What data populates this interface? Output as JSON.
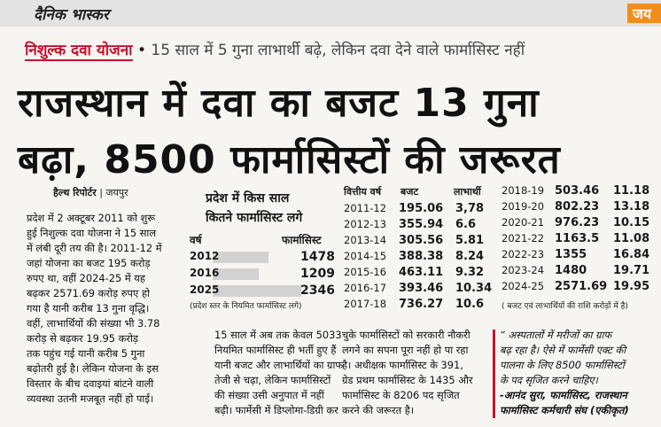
{
  "masthead": {
    "logo": "दैनिक भास्कर",
    "edition": "जय"
  },
  "kicker": {
    "label": "निशुल्क दवा योजना",
    "text": "15 साल में 5 गुना लाभार्थी बढ़े, लेकिन दवा देने वाले फार्मासिस्ट नहीं"
  },
  "headline": [
    "राजस्थान में दवा का बजट 13 गुना",
    "बढ़ा, 8500 फार्मासिस्टों की जरूरत"
  ],
  "byline": {
    "reporter": "हैल्थ रिपोर्टर",
    "place": "जयपुर"
  },
  "pharmacist_box": {
    "title": [
      "प्रदेश में किस साल",
      "कितने फार्मासिस्ट लगे"
    ],
    "header": [
      "वर्ष",
      "फार्मासिस्ट"
    ],
    "rows": [
      [
        "2012",
        1478
      ],
      [
        "2016",
        1209
      ],
      [
        "2025",
        2346
      ]
    ],
    "note": "(प्रदेश स्तर के नियमित फार्मासिस्ट लगे)"
  },
  "budget_table": {
    "header": [
      "वित्तीय वर्ष",
      "बजट",
      "लाभार्थी"
    ],
    "rows": [
      [
        "2011-12",
        "195.06",
        "3,78"
      ],
      [
        "2012-13",
        "355.94",
        "6.6"
      ],
      [
        "2013-14",
        "305.56",
        "5.81"
      ],
      [
        "2014-15",
        "388.38",
        "8.24"
      ],
      [
        "2015-16",
        "463.11",
        "9.32"
      ],
      [
        "2016-17",
        "393.46",
        "10.34"
      ],
      [
        "2017-18",
        "736.27",
        "10.6"
      ],
      [
        "2018-19",
        "503.46",
        "11.18"
      ],
      [
        "2019-20",
        "802.23",
        "13.18"
      ],
      [
        "2020-21",
        "976.23",
        "10.15"
      ],
      [
        "2021-22",
        "1163.5",
        "11.08"
      ],
      [
        "2022-23",
        "1355",
        "16.84"
      ],
      [
        "2023-24",
        "1480",
        "19.71"
      ],
      [
        "2024-25",
        "2571.69",
        "19.95"
      ]
    ],
    "note": "( बजट एवं लाभार्थियों की राशि करोड़ों में है)"
  },
  "columns": [
    [
      "प्रदेश में 2 अक्टूबर 2011 को शुरू",
      "हुई निशुल्क दवा योजना ने 15 साल",
      "में लंबी दूरी तय की है। 2011-12 में",
      "जहां योजना का बजट 195 करोड़",
      "रुपए था, वहीं 2024-25 में यह",
      "बढ़कर 2571.69 करोड़ रुपए हो",
      "गया है यानी करीब 13 गुना वृद्धि।",
      "वहीं, लाभार्थियों की संख्या भी 3.78",
      "करोड़ से बढ़कर 19.95 करोड़",
      "तक पहुंच गई यानी करीब 5 गुना",
      "बढ़ोतरी हुई है। लेकिन योजना के इस",
      "विस्तार के बीच दवाइयां बांटने वाली",
      "व्यवस्था उतनी मजबूत नहीं हो पाई।"
    ],
    [
      "15 साल में अब तक केवल 5033",
      "नियमित फार्मासिस्ट ही भर्ती हुए हैं",
      "यानी बजट और लाभार्थियों का ग्राफ",
      "तेजी से चढ़ा, लेकिन फार्मासिस्टों",
      "की संख्या उसी अनुपात में नहीं",
      "बढ़ी। फार्मेसी में डिप्लोमा-डिग्री कर"
    ],
    [
      "चुके फार्मासिस्टों को सरकारी नौकरी",
      "लगने का सपना पूरा नहीं हो पा रहा",
      "है। अधीक्षक फार्मासिस्ट के 391,",
      "ग्रेड प्रथम फार्मासिस्ट के 1435 और",
      "फार्मासिस्ट के 8206 पद सृजित",
      "करने की जरूरत है।"
    ],
    [
      "“ अस्पतालों में मरीजों का ग्राफ",
      "बढ़ रहा है। ऐसे में फार्मेसी एक्ट की",
      "पालना के लिए 8500 फार्मासिस्टों",
      "के पद सृजित करने चाहिए।",
      "-आनंद सुरा, फार्मासिस्ट, राजस्थान",
      "फार्मासिस्ट कर्मचारी संघ (एकीकृत)"
    ]
  ]
}
